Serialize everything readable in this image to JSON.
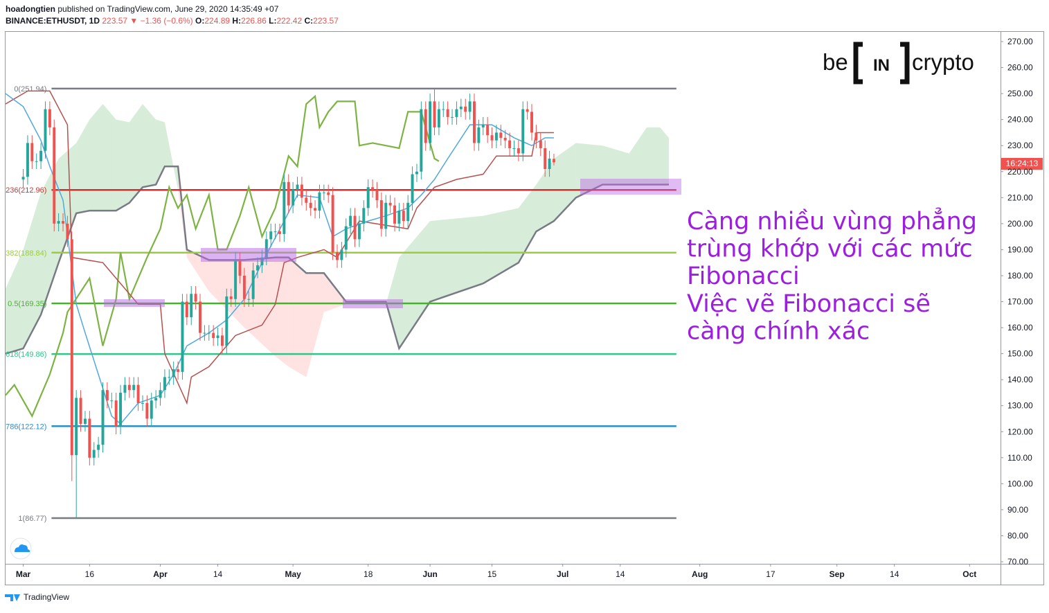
{
  "header": {
    "author": "hoadongtien",
    "published": "published on TradingView.com, June 29, 2020 14:35:49 +07",
    "symbol": "BINANCE:ETHUSDT, 1D",
    "change": "▼ −1.36 (−0.6%)",
    "o": "O:",
    "h": "H:",
    "l": "L:",
    "c": "C:"
  },
  "logo": {
    "be": "be",
    "in": "IN",
    "crypto": "crypto"
  },
  "annotation": {
    "lines": [
      "Càng nhiều vùng phẳng",
      "trùng khớp với các mức",
      "Fibonacci",
      "Việc vẽ Fibonacci sẽ",
      "càng chính xác"
    ]
  },
  "countdown": "16:24:13",
  "footer": "TradingView",
  "chart_data": {
    "type": "candlestick",
    "xlim": [
      -4,
      221
    ],
    "ylim": [
      69.2,
      274
    ],
    "xticks": [
      {
        "value": 0,
        "label": "Mar"
      },
      {
        "value": 15,
        "label": "16"
      },
      {
        "value": 31,
        "label": "Apr"
      },
      {
        "value": 44,
        "label": "14"
      },
      {
        "value": 61,
        "label": "May"
      },
      {
        "value": 78,
        "label": "18"
      },
      {
        "value": 92,
        "label": "Jun"
      },
      {
        "value": 106,
        "label": "15"
      },
      {
        "value": 122,
        "label": "Jul"
      },
      {
        "value": 135,
        "label": "14"
      },
      {
        "value": 153,
        "label": "Aug"
      },
      {
        "value": 169,
        "label": "17"
      },
      {
        "value": 184,
        "label": "Sep"
      },
      {
        "value": 197,
        "label": "14"
      },
      {
        "value": 214,
        "label": "Oct"
      }
    ],
    "yticks": [
      {
        "value": 70,
        "label": "70.00"
      },
      {
        "value": 80,
        "label": "80.00"
      },
      {
        "value": 90,
        "label": "90.00"
      },
      {
        "value": 100,
        "label": "100.00"
      },
      {
        "value": 110,
        "label": "110.00"
      },
      {
        "value": 120,
        "label": "120.00"
      },
      {
        "value": 130,
        "label": "130.00"
      },
      {
        "value": 140,
        "label": "140.00"
      },
      {
        "value": 150,
        "label": "150.00"
      },
      {
        "value": 160,
        "label": "160.00"
      },
      {
        "value": 170,
        "label": "170.00"
      },
      {
        "value": 180,
        "label": "180.00"
      },
      {
        "value": 190,
        "label": "190.00"
      },
      {
        "value": 200,
        "label": "200.00"
      },
      {
        "value": 210,
        "label": "210.00"
      },
      {
        "value": 220,
        "label": "220.00"
      },
      {
        "value": 230,
        "label": "230.00"
      },
      {
        "value": 240,
        "label": "240.00"
      },
      {
        "value": 250,
        "label": "250.00"
      },
      {
        "value": 260,
        "label": "260.00"
      },
      {
        "value": 270,
        "label": "270.00"
      }
    ],
    "candles": {
      "up_color": "#26a69a",
      "down_color": "#ef5350",
      "x": [
        0,
        1,
        2,
        3,
        4,
        5,
        6,
        7,
        8,
        9,
        10,
        11,
        12,
        13,
        14,
        15,
        16,
        17,
        18,
        19,
        20,
        21,
        22,
        23,
        24,
        25,
        26,
        27,
        28,
        29,
        30,
        31,
        32,
        33,
        34,
        35,
        36,
        37,
        38,
        39,
        40,
        41,
        42,
        43,
        44,
        45,
        46,
        47,
        48,
        49,
        50,
        51,
        52,
        53,
        54,
        55,
        56,
        57,
        58,
        59,
        60,
        61,
        62,
        63,
        64,
        65,
        66,
        67,
        68,
        69,
        70,
        71,
        72,
        73,
        74,
        75,
        76,
        77,
        78,
        79,
        80,
        81,
        82,
        83,
        84,
        85,
        86,
        87,
        88,
        89,
        90,
        91,
        92,
        93,
        94,
        95,
        96,
        97,
        98,
        99,
        100,
        101,
        102,
        103,
        104,
        105,
        106,
        107,
        108,
        109,
        110,
        111,
        112,
        113,
        114,
        115,
        116,
        117,
        118,
        119,
        120
      ],
      "open": [
        217,
        218,
        231,
        224,
        224,
        228,
        244,
        237,
        200,
        201,
        200,
        194,
        111,
        133,
        123,
        125,
        110,
        113,
        115,
        136,
        132,
        132,
        122,
        135,
        138,
        136,
        138,
        131,
        131,
        125,
        132,
        133,
        136,
        141,
        141,
        144,
        143,
        170,
        164,
        173,
        170,
        158,
        158,
        158,
        156,
        157,
        153,
        172,
        171,
        186,
        180,
        171,
        171,
        182,
        184,
        187,
        194,
        197,
        197,
        196,
        216,
        207,
        213,
        215,
        210,
        208,
        206,
        205,
        212,
        212,
        211,
        189,
        186,
        190,
        199,
        203,
        194,
        200,
        206,
        214,
        213,
        209,
        198,
        208,
        207,
        200,
        205,
        201,
        208,
        219,
        220,
        244,
        231,
        247,
        237,
        244,
        244,
        241,
        241,
        244,
        245,
        243,
        247,
        231,
        237,
        238,
        234,
        232,
        235,
        233,
        232,
        229,
        229,
        227,
        244,
        243,
        235,
        232,
        229,
        221,
        224.89
      ],
      "high": [
        221,
        234,
        234,
        227,
        231,
        247,
        247,
        240,
        204,
        204,
        203,
        197,
        136,
        136,
        128,
        128,
        116,
        118,
        139,
        139,
        135,
        135,
        138,
        141,
        141,
        141,
        141,
        134,
        134,
        135,
        136,
        139,
        144,
        144,
        147,
        147,
        173,
        173,
        176,
        176,
        173,
        161,
        161,
        161,
        160,
        160,
        175,
        175,
        189,
        189,
        183,
        174,
        185,
        187,
        190,
        197,
        200,
        200,
        200,
        219,
        219,
        216,
        218,
        218,
        213,
        211,
        209,
        215,
        215,
        215,
        214,
        192,
        193,
        202,
        206,
        206,
        203,
        209,
        217,
        217,
        216,
        212,
        211,
        211,
        210,
        208,
        208,
        211,
        222,
        223,
        247,
        247,
        250,
        251.94,
        247,
        247,
        247,
        244,
        247,
        248,
        248,
        250,
        250,
        240,
        241,
        241,
        237,
        238,
        238,
        236,
        235,
        232,
        232,
        247,
        247,
        246,
        238,
        235,
        232,
        228,
        226.86
      ],
      "low": [
        214,
        215,
        221,
        221,
        221,
        225,
        234,
        197,
        197,
        197,
        191,
        101,
        86.77,
        120,
        120,
        107,
        107,
        110,
        112,
        129,
        129,
        119,
        119,
        132,
        133,
        133,
        128,
        128,
        122,
        122,
        129,
        130,
        133,
        138,
        138,
        140,
        140,
        161,
        161,
        167,
        155,
        155,
        155,
        153,
        153,
        150,
        150,
        168,
        168,
        177,
        168,
        168,
        168,
        179,
        181,
        184,
        191,
        194,
        193,
        193,
        204,
        204,
        210,
        207,
        205,
        203,
        202,
        202,
        209,
        208,
        186,
        183,
        183,
        187,
        196,
        191,
        191,
        197,
        203,
        210,
        206,
        195,
        195,
        204,
        197,
        197,
        198,
        198,
        205,
        216,
        217,
        228,
        228,
        234,
        234,
        241,
        238,
        238,
        238,
        241,
        240,
        240,
        228,
        228,
        234,
        231,
        229,
        229,
        230,
        229,
        226,
        226,
        224,
        224,
        240,
        232,
        229,
        226,
        218,
        218,
        222.42
      ],
      "close": [
        218,
        231,
        224,
        224,
        228,
        244,
        237,
        200,
        201,
        200,
        194,
        111,
        133,
        123,
        125,
        110,
        113,
        115,
        136,
        132,
        132,
        122,
        135,
        138,
        136,
        138,
        131,
        131,
        125,
        132,
        133,
        136,
        141,
        141,
        144,
        143,
        170,
        164,
        173,
        170,
        158,
        158,
        158,
        156,
        157,
        153,
        172,
        171,
        186,
        180,
        171,
        171,
        182,
        184,
        187,
        194,
        197,
        197,
        196,
        216,
        207,
        213,
        215,
        210,
        208,
        206,
        205,
        212,
        212,
        211,
        189,
        186,
        190,
        199,
        203,
        194,
        200,
        206,
        214,
        213,
        209,
        198,
        208,
        207,
        200,
        205,
        201,
        208,
        219,
        220,
        244,
        231,
        247,
        237,
        244,
        244,
        241,
        241,
        244,
        245,
        243,
        247,
        231,
        237,
        238,
        234,
        232,
        235,
        233,
        232,
        229,
        229,
        227,
        244,
        243,
        235,
        232,
        229,
        221,
        225,
        223.57
      ]
    },
    "fib": {
      "range": [
        6.4,
        147.7
      ],
      "levels": [
        {
          "label": "0(251.94)",
          "value": 251.94,
          "color": "#787b86"
        },
        {
          "label": "236(212.96)",
          "value": 212.96,
          "color": "#d32f2f"
        },
        {
          "label": "382(188.84)",
          "value": 188.84,
          "color": "#9ccc3c"
        },
        {
          "label": "0.5(169.35)",
          "value": 169.35,
          "color": "#43b42a"
        },
        {
          "label": "618(149.86)",
          "value": 149.86,
          "color": "#2fc48a"
        },
        {
          "label": "786(122.12)",
          "value": 122.12,
          "color": "#2a8fc6"
        },
        {
          "label": "1(86.77)",
          "value": 86.77,
          "color": "#787b86"
        }
      ]
    },
    "ichimoku": {
      "cloud": {
        "up_color": "rgba(76,175,80,0.22)",
        "down_color": "rgba(255,82,82,0.16)",
        "span_b_color": "#787b86",
        "x": [
          -4,
          0,
          4,
          8,
          12,
          15,
          18,
          21,
          24,
          27,
          30,
          32,
          35,
          37,
          42,
          50,
          57,
          60,
          64,
          68,
          73,
          82,
          85,
          92,
          104,
          112,
          116,
          120,
          125,
          131,
          137,
          141,
          144,
          146
        ],
        "span_a": [
          175,
          190,
          212,
          225,
          231,
          240,
          246,
          240,
          239,
          246,
          240,
          239,
          213,
          187,
          174,
          160,
          149,
          145,
          141,
          166,
          169,
          169,
          187,
          201,
          203,
          206,
          215,
          225,
          231,
          230,
          227,
          237,
          237,
          233
        ],
        "span_b": [
          150,
          152,
          165,
          185,
          204,
          205,
          205,
          205,
          208,
          214,
          215,
          222,
          222,
          190,
          186,
          186,
          187,
          187,
          181,
          181,
          170,
          170,
          152,
          170,
          177,
          185,
          197,
          201,
          210,
          215,
          215,
          215,
          215,
          215
        ]
      },
      "tenkan": {
        "color": "#4fa8e0",
        "x": [
          -4,
          0,
          4,
          6,
          9,
          12,
          14,
          17,
          20,
          22,
          26,
          31,
          34,
          37,
          42,
          46,
          50,
          54,
          59,
          62,
          67,
          70,
          73,
          78,
          82,
          87,
          90,
          93,
          96,
          101,
          106,
          111,
          115,
          118,
          120
        ],
        "values": [
          250,
          245,
          232,
          222,
          209,
          169,
          158,
          142,
          126,
          123,
          131,
          134,
          142,
          153,
          158,
          163,
          171,
          185,
          201,
          211,
          210,
          195,
          198,
          201,
          203,
          206,
          211,
          217,
          225,
          238,
          238,
          233,
          230,
          233,
          233
        ]
      },
      "kijun": {
        "color": "#b5504f",
        "x": [
          -4,
          1,
          6,
          10,
          11,
          18,
          20,
          26,
          31,
          32,
          37,
          38,
          42,
          48,
          54,
          57,
          59,
          62,
          68,
          71,
          76,
          87,
          89,
          93,
          98,
          104,
          107,
          115,
          116,
          120
        ],
        "values": [
          246,
          251,
          251,
          238,
          187,
          185,
          181,
          169,
          169,
          150,
          131,
          141,
          145,
          157,
          161,
          169,
          185,
          187,
          190,
          187,
          201,
          198,
          206,
          214,
          217,
          219,
          226,
          226,
          235,
          235
        ]
      },
      "chikou": {
        "color": "#7cb342",
        "x": [
          -4,
          -2,
          2,
          4,
          6,
          9,
          10,
          15,
          18,
          21,
          22,
          24,
          28,
          31,
          33,
          35,
          37,
          39,
          42,
          44,
          46,
          49,
          51,
          54,
          57,
          60,
          62,
          64,
          66,
          67,
          69,
          71,
          75,
          76,
          79,
          82,
          85,
          87,
          90,
          93,
          94
        ],
        "values": [
          134,
          138,
          126,
          134,
          142,
          158,
          166,
          179,
          153,
          171,
          189,
          171,
          187,
          198,
          214,
          206,
          211,
          198,
          211,
          190,
          190,
          203,
          214,
          195,
          206,
          226,
          222,
          246,
          249,
          237,
          243,
          247,
          247,
          230,
          231,
          230,
          229,
          243,
          243,
          225,
          224
        ]
      }
    }
  }
}
